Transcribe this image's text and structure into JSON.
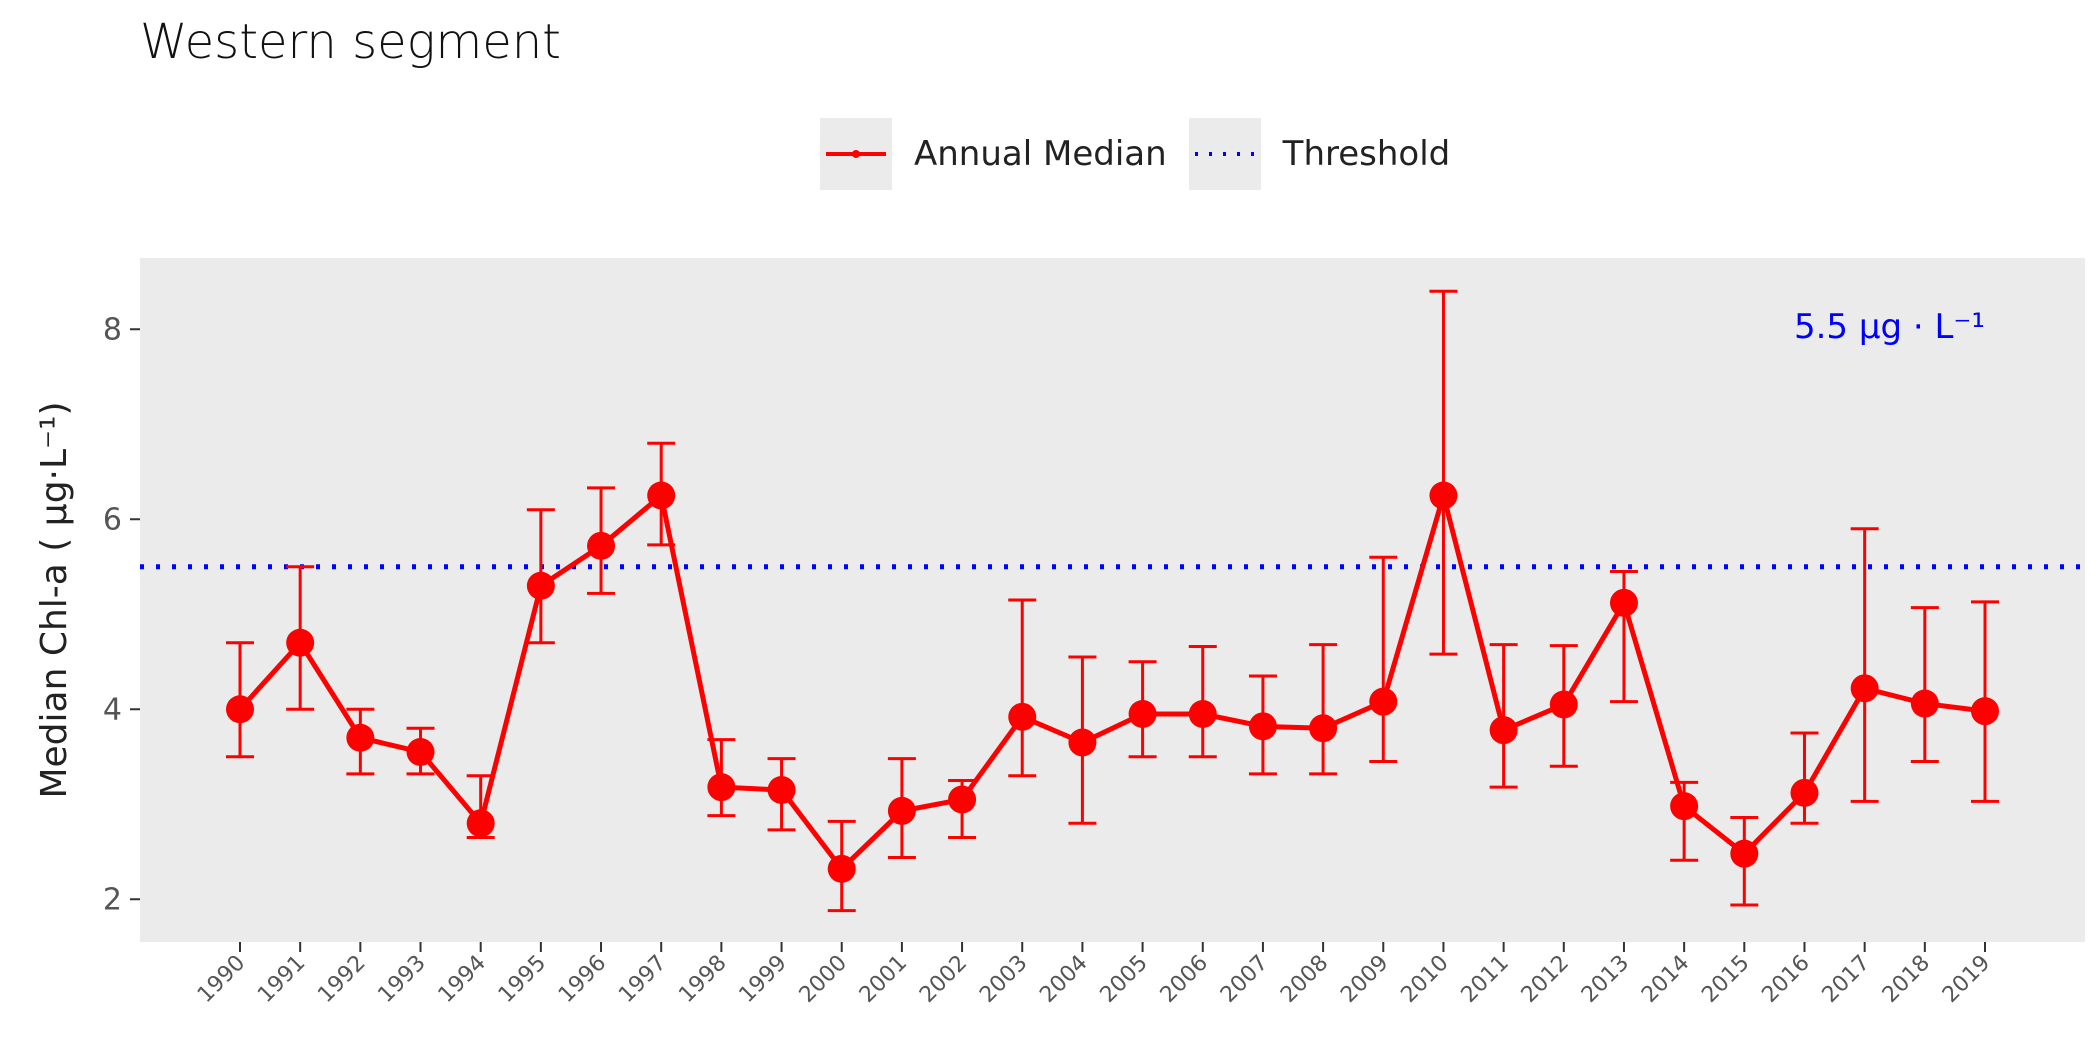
{
  "chart_data": {
    "type": "line",
    "title": "Western segment",
    "xlabel": "",
    "ylabel": "Median Chl-a ( μg·L⁻¹)",
    "ylim": [
      1.55,
      8.75
    ],
    "yticks": [
      2,
      4,
      6,
      8
    ],
    "grid": false,
    "legend_position": "top",
    "x": [
      1990,
      1991,
      1992,
      1993,
      1994,
      1995,
      1996,
      1997,
      1998,
      1999,
      2000,
      2001,
      2002,
      2003,
      2004,
      2005,
      2006,
      2007,
      2008,
      2009,
      2010,
      2011,
      2012,
      2013,
      2014,
      2015,
      2016,
      2017,
      2018,
      2019
    ],
    "series": [
      {
        "name": "Annual Median",
        "color": "#ff0000",
        "values": [
          4.0,
          4.7,
          3.7,
          3.55,
          2.8,
          5.3,
          5.72,
          6.25,
          3.18,
          3.15,
          2.32,
          2.93,
          3.05,
          3.92,
          3.65,
          3.95,
          3.95,
          3.82,
          3.8,
          4.08,
          6.25,
          3.78,
          4.05,
          5.12,
          2.98,
          2.48,
          3.12,
          4.22,
          4.06,
          3.98
        ],
        "lower": [
          3.5,
          4.0,
          3.32,
          3.32,
          2.65,
          4.7,
          5.22,
          5.73,
          2.88,
          2.73,
          1.88,
          2.44,
          2.65,
          3.3,
          2.8,
          3.5,
          3.5,
          3.32,
          3.32,
          3.45,
          4.58,
          3.18,
          3.4,
          4.08,
          2.41,
          1.94,
          2.8,
          3.03,
          3.45,
          3.03
        ],
        "upper": [
          4.7,
          5.5,
          4.0,
          3.8,
          3.3,
          6.1,
          6.33,
          6.8,
          3.68,
          3.48,
          2.82,
          3.48,
          3.25,
          5.15,
          4.55,
          4.5,
          4.66,
          4.35,
          4.68,
          5.6,
          8.4,
          4.68,
          4.67,
          5.45,
          3.23,
          2.86,
          3.75,
          5.9,
          5.07,
          5.13
        ]
      },
      {
        "name": "Threshold",
        "color": "#0000ff",
        "value": 5.5,
        "style": "dotted"
      }
    ],
    "annotation": "5.5 μg · L⁻¹"
  }
}
